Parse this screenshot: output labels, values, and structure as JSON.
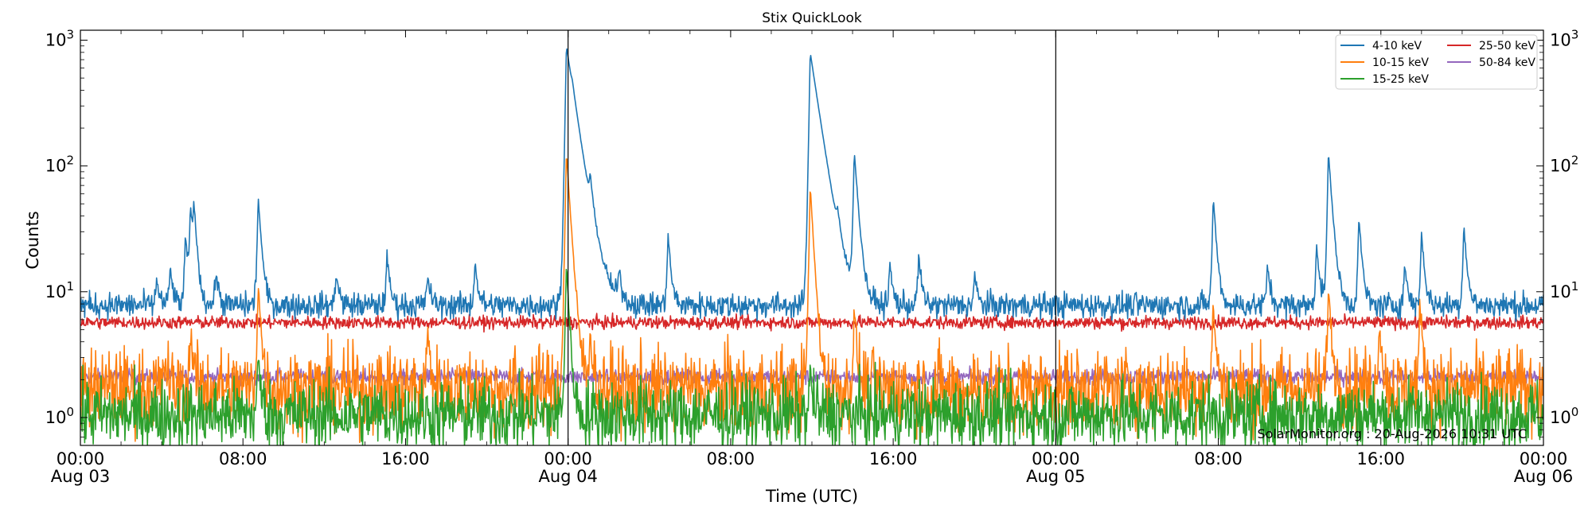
{
  "chart_data": {
    "type": "line",
    "title": "Stix QuickLook",
    "xlabel": "Time (UTC)",
    "ylabel": "Counts",
    "yscale": "log",
    "ylim": [
      0.6,
      1200
    ],
    "y_ticks": [
      {
        "value": 1,
        "base": "10",
        "exp": "0"
      },
      {
        "value": 10,
        "base": "10",
        "exp": "1"
      },
      {
        "value": 100,
        "base": "10",
        "exp": "2"
      },
      {
        "value": 1000,
        "base": "10",
        "exp": "3"
      }
    ],
    "xlim": [
      "2026-08-03 00:00",
      "2026-08-06 00:00"
    ],
    "x_ticks": [
      {
        "time": "2026-08-03 00:00",
        "line1": "00:00",
        "line2": "Aug 03"
      },
      {
        "time": "2026-08-03 08:00",
        "line1": "08:00",
        "line2": ""
      },
      {
        "time": "2026-08-03 16:00",
        "line1": "16:00",
        "line2": ""
      },
      {
        "time": "2026-08-04 00:00",
        "line1": "00:00",
        "line2": "Aug 04"
      },
      {
        "time": "2026-08-04 08:00",
        "line1": "08:00",
        "line2": ""
      },
      {
        "time": "2026-08-04 16:00",
        "line1": "16:00",
        "line2": ""
      },
      {
        "time": "2026-08-05 00:00",
        "line1": "00:00",
        "line2": "Aug 05"
      },
      {
        "time": "2026-08-05 08:00",
        "line1": "08:00",
        "line2": ""
      },
      {
        "time": "2026-08-05 16:00",
        "line1": "16:00",
        "line2": ""
      },
      {
        "time": "2026-08-06 00:00",
        "line1": "00:00",
        "line2": "Aug 06"
      }
    ],
    "day_boundaries": [
      "2026-08-04 00:00",
      "2026-08-05 00:00"
    ],
    "legend_position": "top-right",
    "credit": "SolarMonitor.org : 20-Aug-2026 10:31 UTC",
    "series": [
      {
        "name": "4-10 keV",
        "color": "#1f77b4",
        "baseline": 7.8,
        "noise": 0.05,
        "peaks": [
          {
            "time": "2026-08-03 03:45",
            "value": 13
          },
          {
            "time": "2026-08-03 04:25",
            "value": 16
          },
          {
            "time": "2026-08-03 05:10",
            "value": 28
          },
          {
            "time": "2026-08-03 05:25",
            "value": 45
          },
          {
            "time": "2026-08-03 05:35",
            "value": 43
          },
          {
            "time": "2026-08-03 06:40",
            "value": 15
          },
          {
            "time": "2026-08-03 08:45",
            "value": 58
          },
          {
            "time": "2026-08-03 12:35",
            "value": 15
          },
          {
            "time": "2026-08-03 15:05",
            "value": 20
          },
          {
            "time": "2026-08-03 17:05",
            "value": 14
          },
          {
            "time": "2026-08-03 19:25",
            "value": 18
          },
          {
            "time": "2026-08-03 23:55",
            "value": 900
          },
          {
            "time": "2026-08-04 00:12",
            "value": 58
          },
          {
            "time": "2026-08-04 01:05",
            "value": 41
          },
          {
            "time": "2026-08-04 02:30",
            "value": 14
          },
          {
            "time": "2026-08-04 04:55",
            "value": 29
          },
          {
            "time": "2026-08-04 11:55",
            "value": 800
          },
          {
            "time": "2026-08-04 13:15",
            "value": 21
          },
          {
            "time": "2026-08-04 14:05",
            "value": 130
          },
          {
            "time": "2026-08-04 15:50",
            "value": 17
          },
          {
            "time": "2026-08-04 17:15",
            "value": 20
          },
          {
            "time": "2026-08-04 20:00",
            "value": 14
          },
          {
            "time": "2026-08-05 07:45",
            "value": 58
          },
          {
            "time": "2026-08-05 10:25",
            "value": 17
          },
          {
            "time": "2026-08-05 12:50",
            "value": 25
          },
          {
            "time": "2026-08-05 13:25",
            "value": 130
          },
          {
            "time": "2026-08-05 14:55",
            "value": 40
          },
          {
            "time": "2026-08-05 17:10",
            "value": 17
          },
          {
            "time": "2026-08-05 18:00",
            "value": 30
          },
          {
            "time": "2026-08-05 20:05",
            "value": 35
          }
        ]
      },
      {
        "name": "10-15 keV",
        "color": "#ff7f0e",
        "baseline": 1.7,
        "noise": 0.16,
        "peaks": [
          {
            "time": "2026-08-03 04:10",
            "value": 3
          },
          {
            "time": "2026-08-03 05:25",
            "value": 5
          },
          {
            "time": "2026-08-03 08:45",
            "value": 12
          },
          {
            "time": "2026-08-03 17:05",
            "value": 5
          },
          {
            "time": "2026-08-03 23:55",
            "value": 130
          },
          {
            "time": "2026-08-04 01:05",
            "value": 5
          },
          {
            "time": "2026-08-04 11:55",
            "value": 70
          },
          {
            "time": "2026-08-04 14:05",
            "value": 7
          },
          {
            "time": "2026-08-05 07:45",
            "value": 8
          },
          {
            "time": "2026-08-05 13:25",
            "value": 11
          },
          {
            "time": "2026-08-05 15:55",
            "value": 6
          },
          {
            "time": "2026-08-05 17:55",
            "value": 8
          }
        ]
      },
      {
        "name": "15-25 keV",
        "color": "#2ca02c",
        "baseline": 1.05,
        "noise": 0.14,
        "peaks": [
          {
            "time": "2026-08-03 08:45",
            "value": 3
          },
          {
            "time": "2026-08-03 23:55",
            "value": 17
          },
          {
            "time": "2026-08-04 11:55",
            "value": 2.4
          }
        ]
      },
      {
        "name": "25-50 keV",
        "color": "#d62728",
        "baseline": 5.7,
        "noise": 0.025,
        "peaks": []
      },
      {
        "name": "50-84 keV",
        "color": "#9467bd",
        "baseline": 2.1,
        "noise": 0.03,
        "peaks": []
      }
    ]
  }
}
